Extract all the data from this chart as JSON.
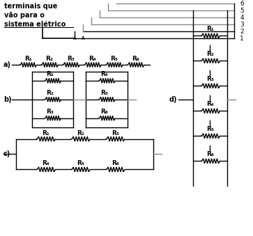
{
  "bg_color": "#ffffff",
  "lc": "#000000",
  "gc": "#888888",
  "top_label": "terminais que\nvão para o\nsistema elétrico",
  "num_lines": 6,
  "R_labels": [
    "R₁",
    "R₂",
    "R₃",
    "R₄",
    "R₅",
    "R₆"
  ]
}
